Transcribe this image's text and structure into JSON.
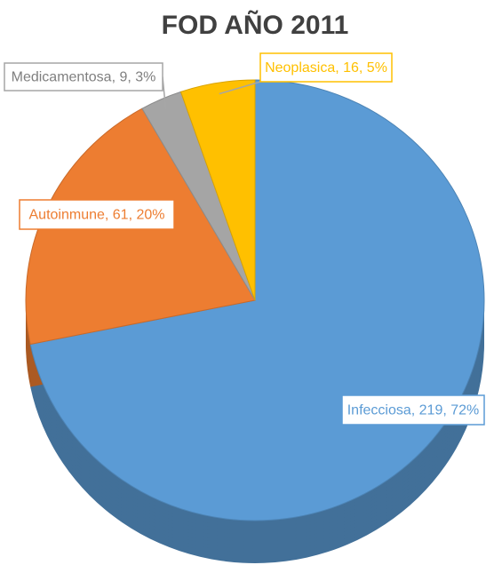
{
  "chart_data": {
    "type": "pie",
    "title": "FOD AÑO 2011",
    "categories": [
      "Infecciosa",
      "Autoinmune",
      "Medicamentosa",
      "Neoplasica"
    ],
    "values": [
      219,
      61,
      9,
      16
    ],
    "value_labels": [
      "Infecciosa, 219, 72%",
      "Autoinmune, 61, 20%",
      "Medicamentosa, 9, 3%",
      "Neoplasica, 16, 5%"
    ],
    "colors": [
      "#5b9bd5",
      "#ed7d31",
      "#a5a5a5",
      "#ffc000"
    ]
  }
}
